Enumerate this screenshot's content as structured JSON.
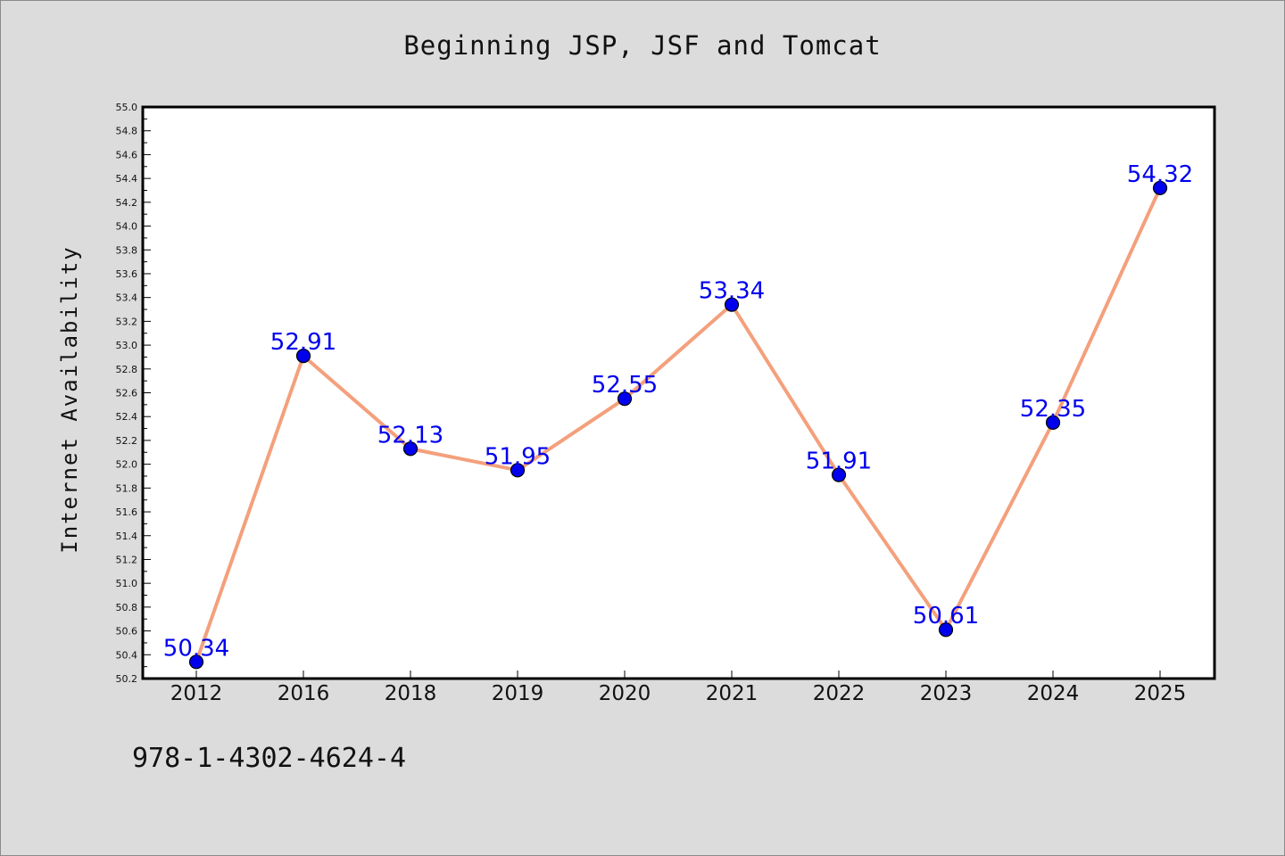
{
  "chart_data": {
    "type": "line",
    "title": "Beginning JSP, JSF and Tomcat",
    "ylabel": "Internet Availability",
    "xlabel": "",
    "categories": [
      "2012",
      "2016",
      "2018",
      "2019",
      "2020",
      "2021",
      "2022",
      "2023",
      "2024",
      "2025"
    ],
    "values": [
      50.34,
      52.91,
      52.13,
      51.95,
      52.55,
      53.34,
      51.91,
      50.61,
      52.35,
      54.32
    ],
    "data_labels": [
      "50.34",
      "52.91",
      "52.13",
      "51.95",
      "52.55",
      "53.34",
      "51.91",
      "50.61",
      "52.35",
      "54.32"
    ],
    "ylim": [
      50.2,
      55.0
    ],
    "yticks": [
      "50.2",
      "50.4",
      "50.6",
      "50.8",
      "51.0",
      "51.2",
      "51.4",
      "51.6",
      "51.8",
      "52.0",
      "52.2",
      "52.4",
      "52.6",
      "52.8",
      "53.0",
      "53.2",
      "53.4",
      "53.6",
      "53.8",
      "54.0",
      "54.2",
      "54.4",
      "54.6",
      "54.8",
      "55.0"
    ],
    "grid": false,
    "line_color": "#f4a07c",
    "marker_color": "#0000ee",
    "label_color": "#0000ee",
    "footer": "978-1-4302-4624-4"
  }
}
